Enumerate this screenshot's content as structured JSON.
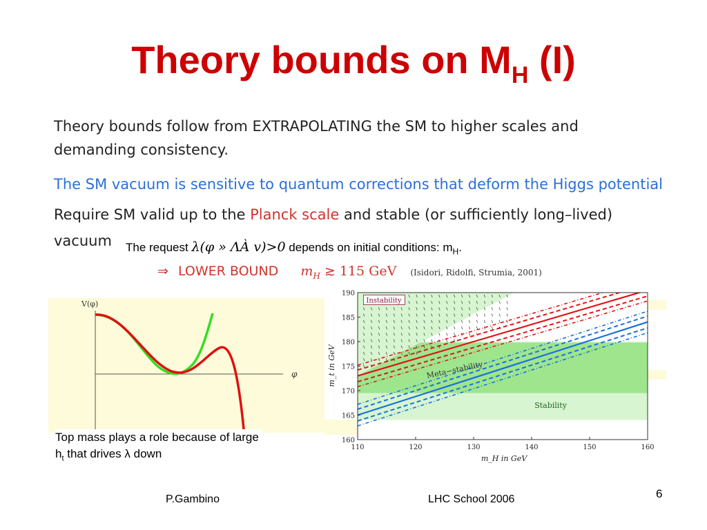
{
  "slide": {
    "title_main": "Theory bounds on M",
    "title_sub": "H",
    "title_suffix": " (I)",
    "para1_line1": "Theory bounds follow from EXTRAPOLATING the SM to higher scales and",
    "para1_line2": "demanding consistency.",
    "para2": "The SM vacuum is sensitive to quantum corrections that deform the Higgs potential",
    "para3_pre": "Require SM valid up to the ",
    "para3_red": "Planck scale",
    "para3_post": " and stable (or sufficiently long–lived)",
    "para3_line2": "vacuum",
    "request_pre": "The request ",
    "request_math": "λ(φ » ΛÀ v)>0",
    "request_post": " depends on initial conditions: m",
    "request_sub": "H",
    "request_end": ".",
    "lower_arrow": "⇒",
    "lower_label": "LOWER BOUND",
    "lower_math": "m",
    "lower_math_sub": "H",
    "lower_relation": "≳",
    "lower_value": "115 GeV",
    "lower_cite": "(Isidori, Ridolfi, Strumia, 2001)",
    "caption_line1": "Top mass plays a role because of large",
    "caption_line2_pre": "h",
    "caption_line2_sub": "t",
    "caption_line2_post": " that drives λ down",
    "footer_author": "P.Gambino",
    "footer_event": "LHC School 2006",
    "page_number": "6"
  },
  "potential_plot": {
    "ylabel": "V(φ)",
    "xlabel": "φ",
    "colors": {
      "green": "#33dd22",
      "red": "#e01010"
    }
  },
  "chart_data": {
    "type": "line",
    "xlabel": "m_H in GeV",
    "ylabel": "m_t in GeV",
    "xlim": [
      110,
      160
    ],
    "ylim": [
      160,
      190
    ],
    "xticks": [
      110,
      120,
      130,
      140,
      150,
      160
    ],
    "yticks": [
      160,
      165,
      170,
      175,
      180,
      185,
      190
    ],
    "regions": [
      {
        "name": "Instability",
        "color": "#8b1538"
      },
      {
        "name": "Meta−stability",
        "color": "#333333"
      },
      {
        "name": "Stability",
        "color": "#226622"
      }
    ],
    "series": [
      {
        "color": "#e01515",
        "points": [
          [
            110,
            173
          ],
          [
            160,
            190.5
          ]
        ]
      },
      {
        "color": "#1a6fe0",
        "points": [
          [
            110,
            165
          ],
          [
            160,
            184
          ]
        ]
      }
    ],
    "bands": [
      {
        "y": [
          164,
          180
        ],
        "color": "#d6f5d0"
      },
      {
        "y": [
          169.5,
          179.8
        ],
        "color": "#9ee58e"
      }
    ]
  }
}
